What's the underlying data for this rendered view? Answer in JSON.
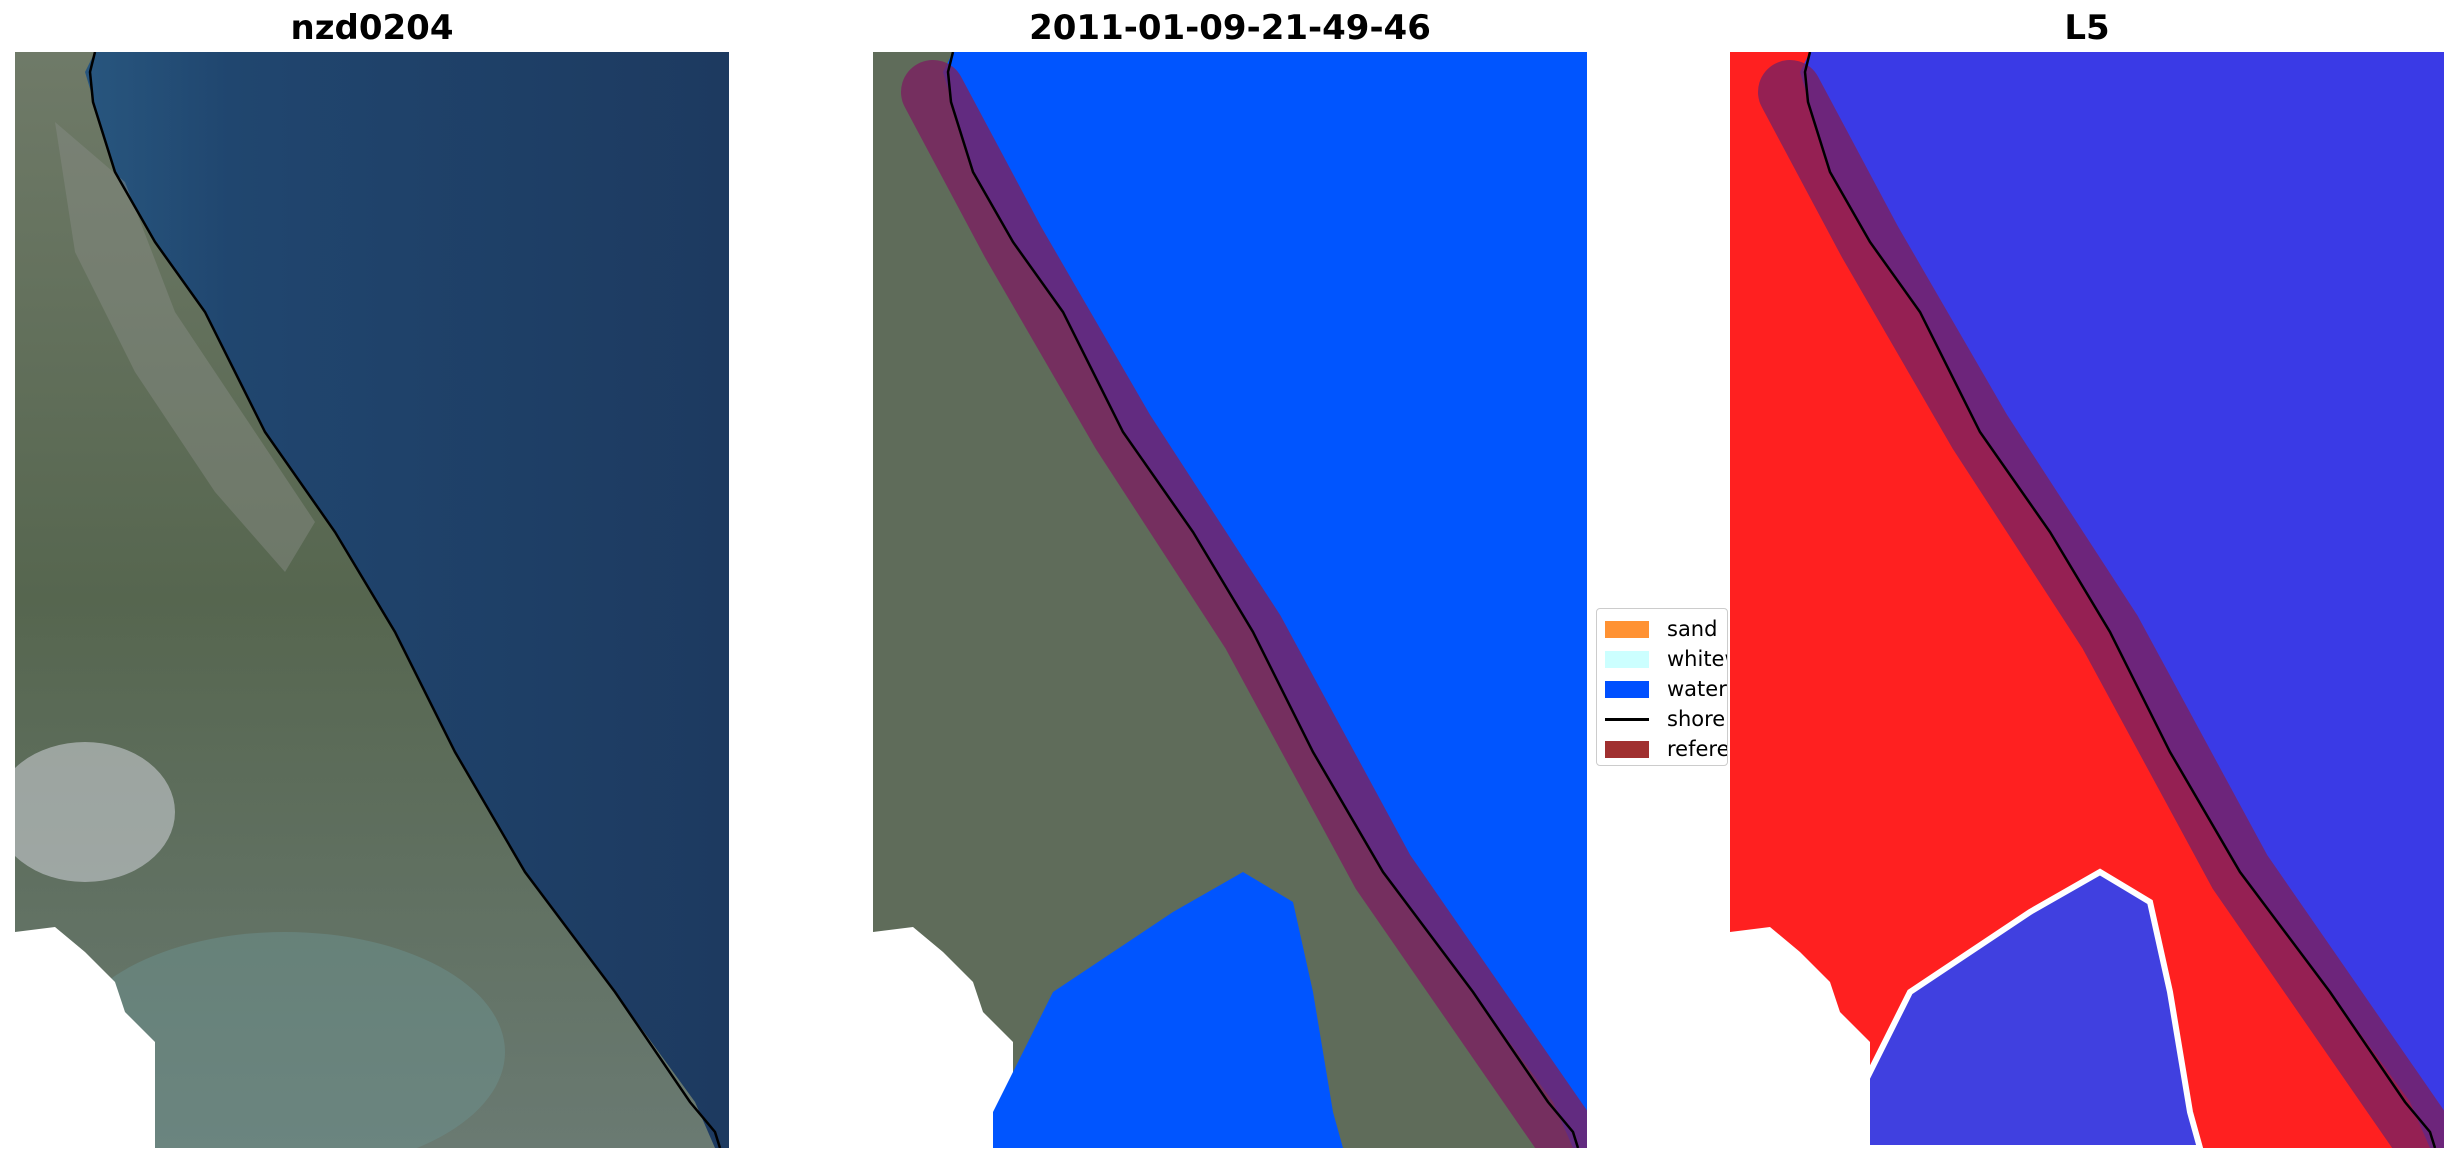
{
  "figure": {
    "titles": [
      "nzd0204",
      "2011-01-09-21-49-46",
      "L5"
    ]
  },
  "legend": {
    "items": [
      {
        "label": "sand",
        "kind": "patch",
        "color": "#ff9233"
      },
      {
        "label": "whitew",
        "kind": "patch",
        "color": "#ccffff"
      },
      {
        "label": "water",
        "kind": "patch",
        "color": "#0050ff"
      },
      {
        "label": "shorel",
        "kind": "line",
        "color": "#000000"
      },
      {
        "label": "referen",
        "kind": "patch",
        "color": "#a03030"
      }
    ]
  },
  "colors": {
    "sea": "#1f3f66",
    "land": "#5f6c5a",
    "water_class": "#0055ff",
    "reference_buffer": "#7a2060",
    "index_land": "#ff2020",
    "index_water": "#3a3ae6",
    "cloud": "#ffffff",
    "shoreline": "#000000"
  }
}
